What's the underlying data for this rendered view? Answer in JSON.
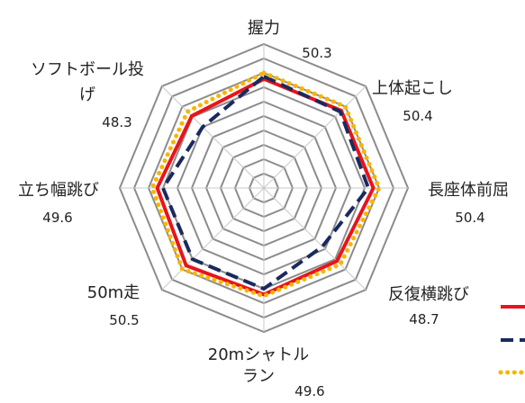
{
  "chart_data": {
    "type": "radar",
    "axes": [
      {
        "label_lines": [
          "握力"
        ],
        "value_text": "50.3"
      },
      {
        "label_lines": [
          "上体起こし"
        ],
        "value_text": "50.4"
      },
      {
        "label_lines": [
          "長座体前屈"
        ],
        "value_text": "50.4"
      },
      {
        "label_lines": [
          "反復横跳び"
        ],
        "value_text": "48.7"
      },
      {
        "label_lines": [
          "20mシャトル",
          "ラン"
        ],
        "value_text": "49.6"
      },
      {
        "label_lines": [
          "50m走"
        ],
        "value_text": "50.5"
      },
      {
        "label_lines": [
          "立ち幅跳び"
        ],
        "value_text": "49.6"
      },
      {
        "label_lines": [
          "ソフトボール投",
          "げ"
        ],
        "value_text": "48.3"
      }
    ],
    "range": [
      20,
      60
    ],
    "grid_rings": 10,
    "series": [
      {
        "values": [
          50.3,
          50.4,
          50.4,
          48.7,
          49.6,
          50.5,
          49.6,
          48.3
        ],
        "color": "#e8141c",
        "style": "solid"
      },
      {
        "values": [
          51,
          50,
          49,
          43,
          48,
          48,
          48,
          44
        ],
        "color": "#1a2a5e",
        "style": "dashed"
      },
      {
        "values": [
          52,
          52,
          52,
          50,
          50,
          52,
          51,
          50
        ],
        "color": "#f7b500",
        "style": "dotted"
      }
    ],
    "legend": {
      "position": "right"
    }
  }
}
